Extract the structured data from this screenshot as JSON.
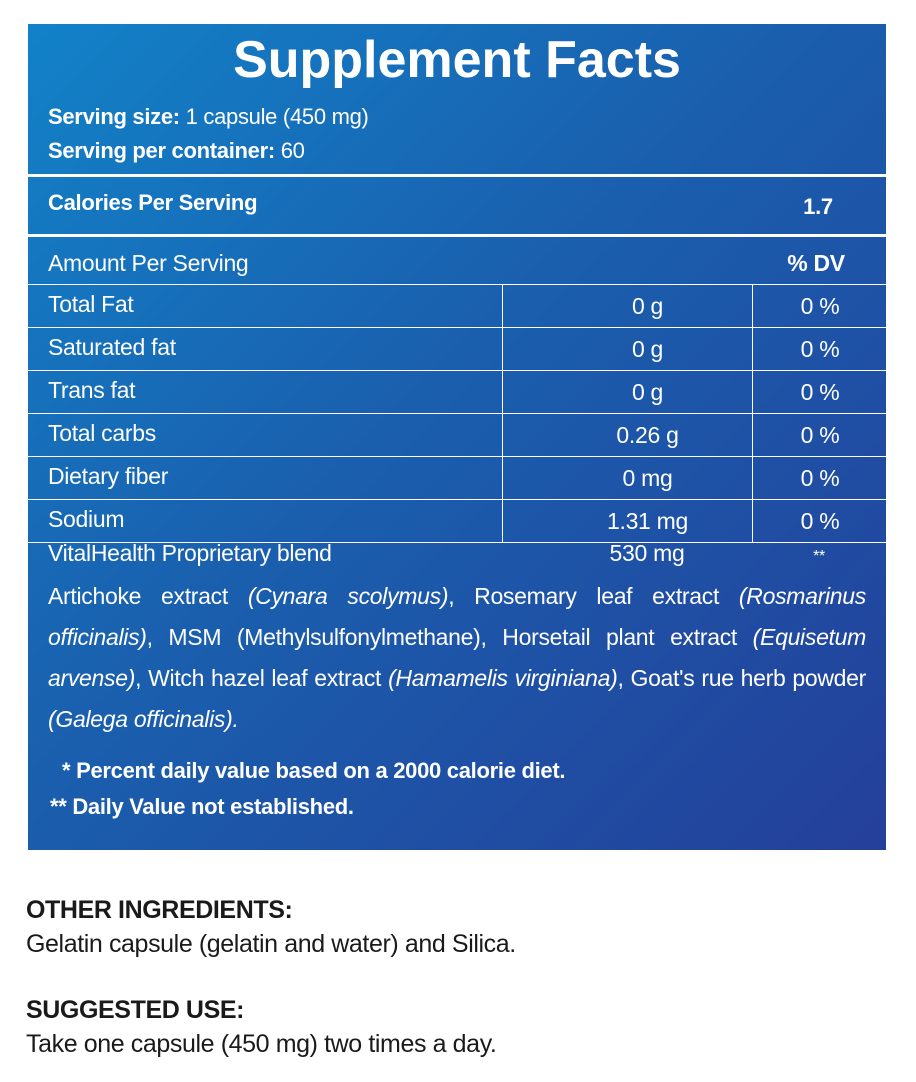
{
  "panel": {
    "title": "Supplement Facts",
    "serving_size_label": "Serving size:",
    "serving_size_value": "1 capsule (450 mg)",
    "serving_per_container_label": "Serving per container:",
    "serving_per_container_value": "60",
    "calories_label": "Calories Per Serving",
    "calories_value": "1.7",
    "amount_header": "Amount Per Serving",
    "dv_header": "% DV",
    "rows": [
      {
        "name": "Total Fat",
        "amount": "0 g",
        "dv": "0 %"
      },
      {
        "name": "Saturated fat",
        "amount": "0 g",
        "dv": "0 %"
      },
      {
        "name": "Trans fat",
        "amount": "0 g",
        "dv": "0 %"
      },
      {
        "name": "Total carbs",
        "amount": "0.26 g",
        "dv": "0 %"
      },
      {
        "name": "Dietary fiber",
        "amount": "0 mg",
        "dv": "0 %"
      },
      {
        "name": "Sodium",
        "amount": "1.31 mg",
        "dv": "0 %"
      }
    ],
    "blend": {
      "name": "VitalHealth Proprietary blend",
      "amount": "530 mg",
      "dv": "**",
      "ingredients": [
        {
          "text": "Artichoke extract ",
          "latin": "(Cynara scolymus)"
        },
        {
          "text": ", Rosemary leaf extract ",
          "latin": "(Rosmarinus officinalis)"
        },
        {
          "text": ", MSM (Methylsulfonylmethane), Horsetail plant extract ",
          "latin": "(Equisetum arvense)"
        },
        {
          "text": ", Witch hazel leaf  extract ",
          "latin": "(Hamamelis virginiana)"
        },
        {
          "text": ", Goat's rue herb powder ",
          "latin": "(Galega  officinalis)."
        }
      ]
    },
    "footnote1_mark": "*",
    "footnote1": "Percent daily value based on a 2000 calorie diet.",
    "footnote2_mark": "**",
    "footnote2": "Daily Value not established."
  },
  "other_ingredients": {
    "heading": "OTHER INGREDIENTS:",
    "text": "Gelatin capsule (gelatin and water) and Silica."
  },
  "suggested_use": {
    "heading": "SUGGESTED USE:",
    "text": "Take one capsule (450 mg) two times a day."
  }
}
